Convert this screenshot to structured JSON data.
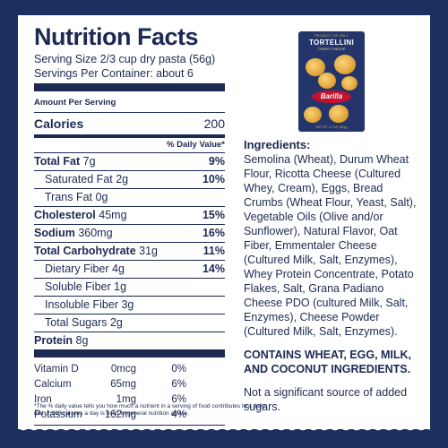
{
  "nutrition": {
    "title": "Nutrition Facts",
    "serving_size": "Serving Size 2/3 cup dry pasta (56g)",
    "servings_per_container": "Servings Per Container: about 6",
    "amount_per_serving": "Amount Per Serving",
    "calories_label": "Calories",
    "calories_value": "200",
    "daily_value_header": "% Daily Value*",
    "rows": [
      {
        "label": "Total Fat",
        "amount": "7g",
        "pct": "9%"
      },
      {
        "label": "Saturated Fat",
        "amount": "2g",
        "pct": "10%"
      },
      {
        "label": "Trans Fat",
        "amount": "0g",
        "pct": ""
      },
      {
        "label": "Cholesterol",
        "amount": "45mg",
        "pct": "15%"
      },
      {
        "label": "Sodium",
        "amount": "360mg",
        "pct": "16%"
      },
      {
        "label": "Total Carbohydrate",
        "amount": "31g",
        "pct": "11%"
      },
      {
        "label": "Dietary Fiber",
        "amount": "4g",
        "pct": "14%"
      },
      {
        "label": "Soluble Fiber",
        "amount": "1g",
        "pct": ""
      },
      {
        "label": "Insoluble Fiber",
        "amount": "3g",
        "pct": ""
      },
      {
        "label": "Total Sugars",
        "amount": "2g",
        "pct": ""
      },
      {
        "label": "Protein",
        "amount": "8g",
        "pct": ""
      }
    ],
    "vitamins": [
      {
        "name": "Vitamin D",
        "amount": "0mcg",
        "pct": "0%"
      },
      {
        "name": "Calcium",
        "amount": "65mg",
        "pct": "6%"
      },
      {
        "name": "Iron",
        "amount": "1mg",
        "pct": "6%"
      },
      {
        "name": "Potassium",
        "amount": "162mg",
        "pct": "4%"
      }
    ],
    "footnote": "*The % daily value tells you how much a nutrient in a serving of food contributes to a daily diet. 2,000 calories a day is used forgeneral nutrition advice."
  },
  "ingredients": {
    "heading": "Ingredients:",
    "text": "Semolina (Wheat), Durum Wheat Flour, Ricotta Cheese (Cultured Whey, Cream), Eggs, Bread Crumbs (Wheat Flour, Yeast, Salt), Vegetable Oils (Olive and/or Sunflower), Natural Flavor, Oat Fiber, Emmentaler Cheese (Cultured Milk, Salt, Enzymes), Whey Protein Concentrate, Potato Flakes, Salt, Grana Padiano Cheese PDO (cultured Milk, Salt, Enzymes), Cheese Powder (Cultured Milk, Salt, Enzymes).",
    "contains": "CONTAINS WHEAT, EGG, MILK, AND COCONUT INGREDIENTS.",
    "sugar_note": "Not a significant source of added sugars."
  },
  "package": {
    "brand_line": "PRODUCT OF ITALY",
    "name": "TORTELLINI",
    "sub": "THREE CHEESE",
    "logo": "Barilla",
    "footer": "NET WT 12 OZ (340g)"
  },
  "colors": {
    "background": "#1c2f5e",
    "panel": "#ffffff",
    "text": "#1c2a52",
    "package": "#23356b",
    "logo_red": "#c8102e"
  }
}
